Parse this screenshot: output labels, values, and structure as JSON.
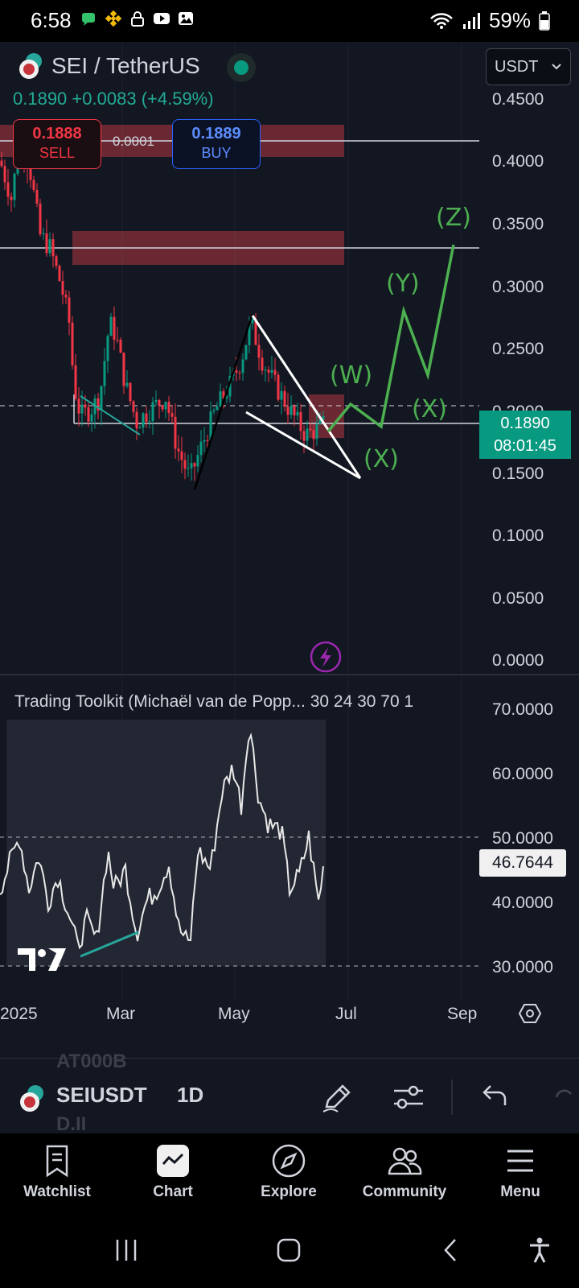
{
  "status_bar": {
    "time": "6:58",
    "battery": "59%",
    "left_icons": [
      "chat-icon",
      "binance-icon",
      "lock-icon",
      "youtube-icon",
      "gallery-icon"
    ],
    "right_icons": [
      "wifi-icon",
      "signal-icon",
      "battery-icon"
    ]
  },
  "chart": {
    "symbol_title": "SEI / TetherUS",
    "quote_currency": "USDT",
    "last_price": "0.1890",
    "change": "+0.0083",
    "change_pct": "(+4.59%)",
    "sell_price": "0.1888",
    "sell_label": "SELL",
    "buy_price": "0.1889",
    "buy_label": "BUY",
    "spread": "0.0001",
    "price_axis": [
      "0.4500",
      "0.4000",
      "0.3500",
      "0.3000",
      "0.2500",
      "0.2000",
      "0.1500",
      "0.1000",
      "0.0500",
      "0.0000"
    ],
    "price_badge_value": "0.1890",
    "price_badge_countdown": "08:01:45",
    "wave_labels": [
      "(W)",
      "(X)",
      "(Y)",
      "(X)",
      "(Z)"
    ],
    "colors": {
      "background": "#131722",
      "up": "#089981",
      "down": "#f23645",
      "wave": "#4caf50",
      "zone": "#b2383f"
    }
  },
  "indicator": {
    "title": "Trading Toolkit (Michaël van de Popp... 30 24 30 70 1",
    "axis": [
      "70.0000",
      "60.0000",
      "50.0000",
      "40.0000",
      "30.0000"
    ],
    "current_value": "46.7644"
  },
  "time_axis": [
    "2025",
    "Mar",
    "May",
    "Jul",
    "Sep"
  ],
  "toolbar": {
    "symbol": "SEIUSDT",
    "interval": "1D",
    "ghost_above": "AT000B",
    "ghost_below": "D.II"
  },
  "nav": {
    "items": [
      {
        "label": "Watchlist"
      },
      {
        "label": "Chart"
      },
      {
        "label": "Explore"
      },
      {
        "label": "Community"
      },
      {
        "label": "Menu"
      }
    ]
  }
}
